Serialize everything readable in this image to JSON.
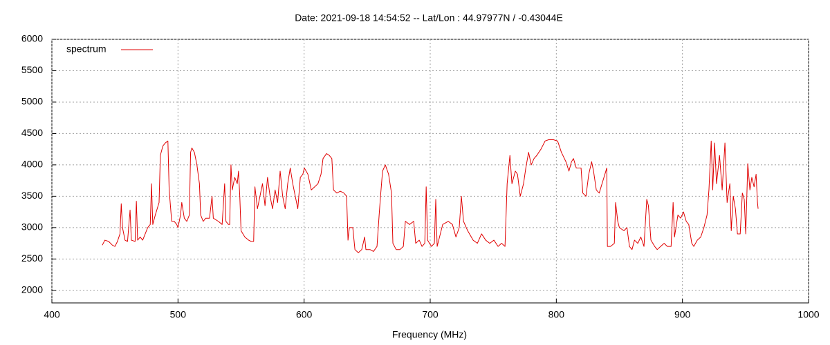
{
  "chart_data": {
    "type": "line",
    "title": "Date: 2021-09-18 14:54:52  --  Lat/Lon : 44.97977N / -0.43044E",
    "xlabel": "Frequency (MHz)",
    "xlim": [
      400,
      1000
    ],
    "xticks": [
      400,
      500,
      600,
      700,
      800,
      900,
      1000
    ],
    "ylim": [
      1800,
      6000
    ],
    "yticks": [
      2000,
      2500,
      3000,
      3500,
      4000,
      4500,
      5000,
      5500,
      6000
    ],
    "grid": true,
    "legend": "top-left",
    "series": [
      {
        "name": "spectrum",
        "color": "#e00000",
        "x": [
          440,
          442,
          445,
          448,
          450,
          452,
          454,
          455,
          456,
          458,
          460,
          462,
          463,
          466,
          467,
          468,
          470,
          472,
          474,
          476,
          478,
          479,
          480,
          482,
          485,
          486,
          488,
          490,
          492,
          493,
          495,
          497,
          499,
          500,
          502,
          503,
          505,
          507,
          509,
          510,
          511,
          513,
          515,
          517,
          518,
          520,
          522,
          525,
          527,
          528,
          532,
          535,
          537,
          538,
          540,
          541,
          542,
          543,
          545,
          547,
          548,
          549,
          550,
          553,
          556,
          558,
          560,
          561,
          563,
          565,
          567,
          569,
          571,
          573,
          575,
          577,
          579,
          581,
          583,
          585,
          587,
          589,
          591,
          593,
          595,
          597,
          599,
          600.2,
          603,
          605.7,
          608.4,
          611,
          613.4,
          615,
          617.8,
          620,
          622,
          623.3,
          626,
          628.7,
          631.5,
          633.7,
          634.8,
          635.9,
          638.6,
          640.3,
          643,
          645.7,
          648,
          649,
          652.3,
          655,
          657.8,
          659.5,
          660.6,
          662.2,
          664.4,
          667,
          669.3,
          670.4,
          673,
          676,
          678.7,
          680.3,
          683.6,
          686.9,
          688.5,
          691.3,
          693.5,
          695.7,
          696.8,
          697.9,
          701,
          703.3,
          704.4,
          705.5,
          709.9,
          714.3,
          717.6,
          720.4,
          723,
          724.7,
          726.4,
          729.7,
          734,
          737.4,
          740.7,
          744,
          747.2,
          750.5,
          753.8,
          756.6,
          759.3,
          761,
          763.2,
          764.8,
          767.5,
          769.2,
          771.4,
          774,
          775.8,
          778,
          780.1,
          782.3,
          784.5,
          787.8,
          791.1,
          793.9,
          797.7,
          801,
          804,
          807.6,
          810,
          812,
          813.6,
          815.8,
          819.6,
          821,
          823.5,
          825.7,
          828,
          829.5,
          831.7,
          834,
          837,
          840,
          840.5,
          843,
          846,
          847,
          848.7,
          850,
          853.6,
          856,
          858,
          860,
          862,
          864.6,
          867,
          869.5,
          871.7,
          873,
          875,
          878,
          880,
          882.7,
          885.5,
          888,
          891,
          892.6,
          893.7,
          896.4,
          898.6,
          900.8,
          903,
          905,
          907.4,
          909,
          911.8,
          914.5,
          917,
          919.5,
          921,
          922.8,
          924,
          925.5,
          927,
          929.4,
          931.5,
          933.7,
          935.4,
          937.6,
          938.7,
          940.3,
          942,
          943.6,
          945.8,
          947.5,
          949,
          950.2,
          951.8,
          953.5,
          955,
          956.8,
          958.4,
          959.5,
          960
        ],
        "values": [
          2720,
          2800,
          2780,
          2720,
          2700,
          2780,
          2900,
          3380,
          3000,
          2800,
          2780,
          3280,
          2800,
          2780,
          3420,
          2800,
          2850,
          2800,
          2900,
          3000,
          3050,
          3700,
          3050,
          3200,
          3400,
          4150,
          4300,
          4350,
          4380,
          3600,
          3100,
          3100,
          3050,
          3000,
          3200,
          3400,
          3150,
          3100,
          3200,
          4200,
          4270,
          4200,
          4000,
          3700,
          3200,
          3100,
          3150,
          3150,
          3500,
          3150,
          3100,
          3050,
          3700,
          3100,
          3050,
          3050,
          4000,
          3600,
          3800,
          3700,
          3900,
          3500,
          2950,
          2850,
          2800,
          2780,
          2780,
          3650,
          3300,
          3500,
          3700,
          3350,
          3800,
          3500,
          3300,
          3600,
          3400,
          3900,
          3500,
          3300,
          3700,
          3950,
          3700,
          3500,
          3300,
          3800,
          3850,
          3950,
          3850,
          3600,
          3650,
          3700,
          3850,
          4100,
          4180,
          4150,
          4100,
          3600,
          3550,
          3580,
          3550,
          3500,
          2800,
          3000,
          3000,
          2650,
          2600,
          2650,
          2850,
          2650,
          2650,
          2620,
          2700,
          3200,
          3500,
          3900,
          4000,
          3850,
          3550,
          2750,
          2650,
          2650,
          2700,
          3100,
          3050,
          3100,
          2750,
          2800,
          2700,
          2750,
          3650,
          2800,
          2700,
          2750,
          3450,
          2700,
          3050,
          3100,
          3050,
          2850,
          3000,
          3500,
          3100,
          2950,
          2800,
          2750,
          2900,
          2800,
          2750,
          2800,
          2700,
          2750,
          2700,
          3700,
          4150,
          3700,
          3900,
          3850,
          3500,
          3700,
          3950,
          4200,
          4000,
          4100,
          4150,
          4250,
          4380,
          4400,
          4400,
          4380,
          4200,
          4050,
          3900,
          4050,
          4100,
          3950,
          3950,
          3550,
          3500,
          3850,
          4050,
          3900,
          3600,
          3550,
          3750,
          3950,
          2700,
          2700,
          2750,
          3400,
          3100,
          3000,
          2950,
          3000,
          2700,
          2650,
          2800,
          2750,
          2850,
          2700,
          3450,
          3350,
          2800,
          2700,
          2650,
          2700,
          2750,
          2700,
          2700,
          3400,
          2850,
          3200,
          3150,
          3250,
          3100,
          3050,
          2750,
          2700,
          2800,
          2850,
          3000,
          3200,
          3600,
          4380,
          3600,
          4350,
          3700,
          4150,
          3600,
          4350,
          3400,
          3700,
          2950,
          3500,
          3300,
          2900,
          2900,
          3550,
          3450,
          2900,
          4020,
          3600,
          3800,
          3650,
          3850,
          3400,
          3300
        ]
      }
    ]
  }
}
